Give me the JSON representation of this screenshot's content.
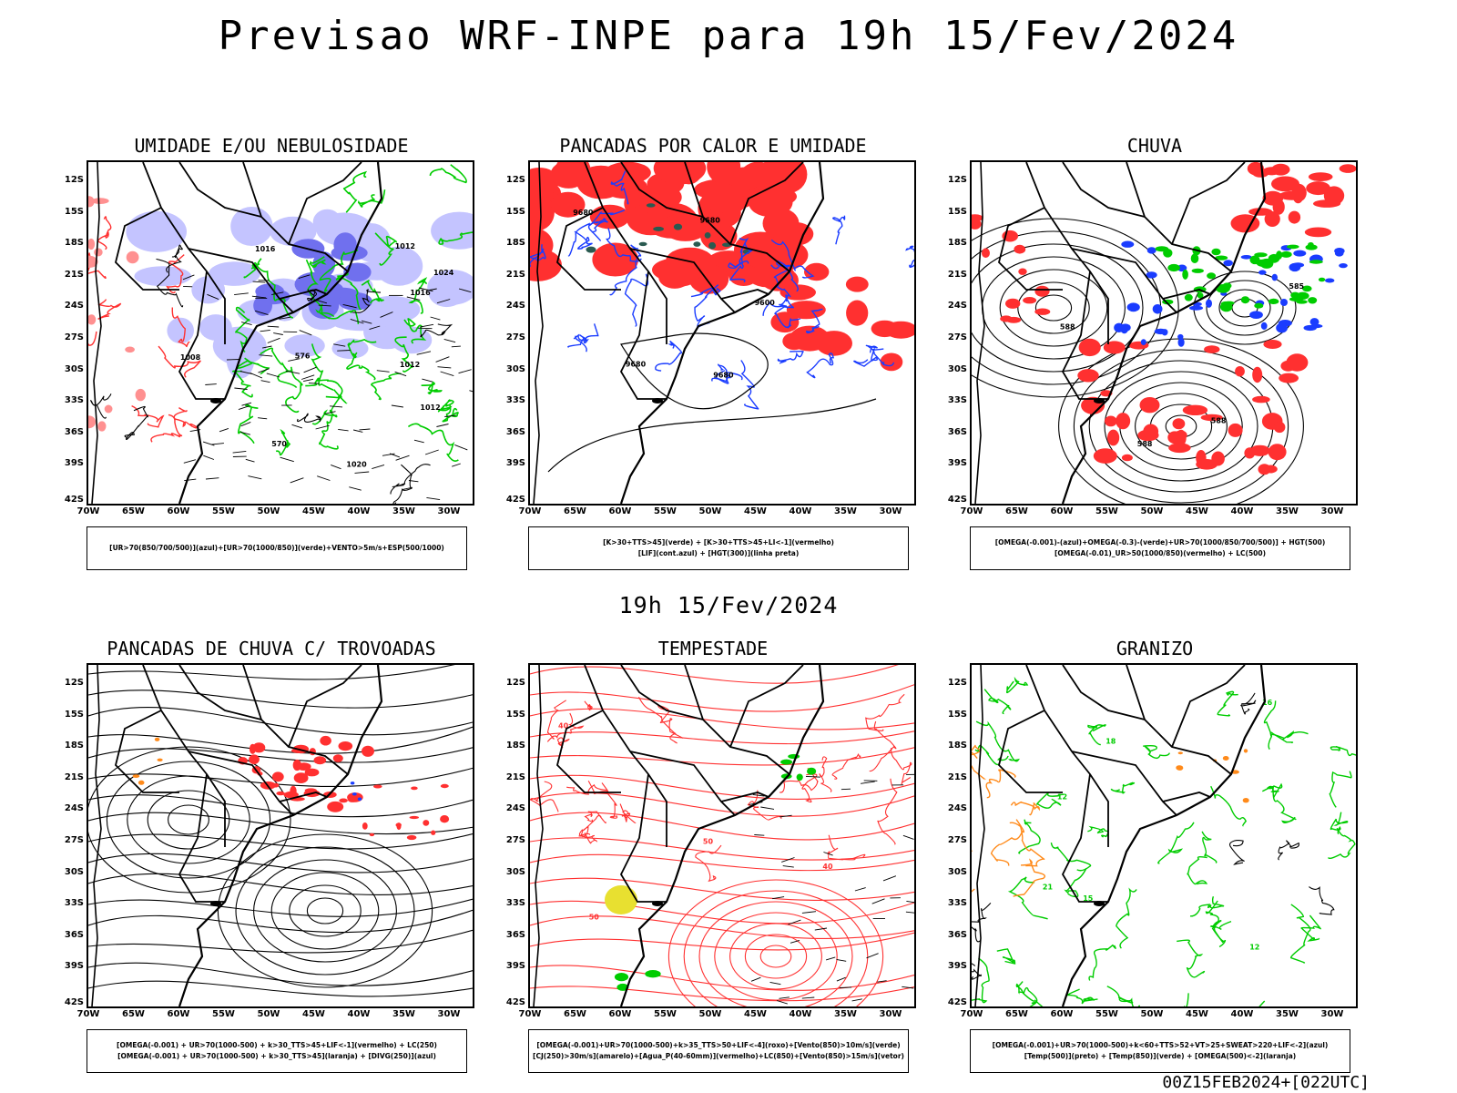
{
  "title": "Previsao WRF-INPE  para 19h 15/Fev/2024",
  "subtitle": "19h 15/Fev/2024",
  "footer": "00Z15FEB2024+[022UTC]",
  "lat_labels": [
    "12S",
    "15S",
    "18S",
    "21S",
    "24S",
    "27S",
    "30S",
    "33S",
    "36S",
    "39S",
    "42S"
  ],
  "lon_labels": [
    "70W",
    "65W",
    "60W",
    "55W",
    "50W",
    "45W",
    "40W",
    "35W",
    "30W"
  ],
  "panels": [
    {
      "title": "UMIDADE E/OU NEBULOSIDADE",
      "legend": [
        "[UR>70(850/700/500)](azul)+[UR>70(1000/850)](verde)+VENTO>5m/s+ESP(500/1000)"
      ],
      "contour_labels": [
        "1012",
        "1012",
        "1012",
        "1016",
        "1016",
        "1020",
        "1024",
        "1008",
        "576",
        "570"
      ]
    },
    {
      "title": "PANCADAS POR CALOR E UMIDADE",
      "legend": [
        "[K>30+TTS>45](verde) + [K>30+TTS>45+LI<-1](vermelho)",
        "[LIF](cont.azul) + [HGT(300)](linha preta)"
      ],
      "contour_labels": [
        "9680",
        "9680",
        "9680",
        "9600",
        "9680"
      ]
    },
    {
      "title": "CHUVA",
      "legend": [
        "[OMEGA(-0.001)-(azul)+OMEGA(-0.3)-(verde)+UR>70(1000/850/700/500)] + HGT(500)",
        "[OMEGA(-0.01)_UR>50(1000/850)(vermelho) + LC(500)"
      ],
      "contour_labels": [
        "588",
        "588",
        "585",
        "588"
      ]
    },
    {
      "title": "PANCADAS DE CHUVA C/ TROVOADAS",
      "legend": [
        "[OMEGA(-0.001) + UR>70(1000-500) + k>30_TTS>45+LIF<-1](vermelho) + LC(250)",
        "[OMEGA(-0.001) + UR>70(1000-500) + k>30_TTS>45](laranja) + [DIVG(250)](azul)"
      ],
      "contour_labels": []
    },
    {
      "title": "TEMPESTADE",
      "legend": [
        "[OMEGA(-0.001)+UR>70(1000-500)+k>35_TTS>50+LIF<-4](roxo)+[Vento(850)>10m/s](verde)",
        "[CJ(250)>30m/s](amarelo)+[Agua_P(40-60mm)](vermelho)+LC(850)+[Vento(850)>15m/s](vetor)"
      ],
      "contour_labels": [
        "50",
        "50",
        "40",
        "40"
      ]
    },
    {
      "title": "GRANIZO",
      "legend": [
        "[OMEGA(-0.001)+UR>70(1000-500)+k<60+TTS>52+VT>25+SWEAT>220+LIF<-2](azul)",
        "[Temp(500)](preto) + [Temp(850)](verde) + [OMEGA(500)<-2](laranja)"
      ],
      "contour_labels": [
        "16",
        "15",
        "18",
        "12",
        "12",
        "21"
      ]
    }
  ],
  "colors": {
    "humidity_blue_light": "#c4c4ff",
    "humidity_blue_dark": "#7070ee",
    "green": "#00cc00",
    "red": "#ff3030",
    "blue": "#1a3cff",
    "yellow": "#e8e030",
    "orange": "#ff8a1a",
    "black": "#000000"
  }
}
